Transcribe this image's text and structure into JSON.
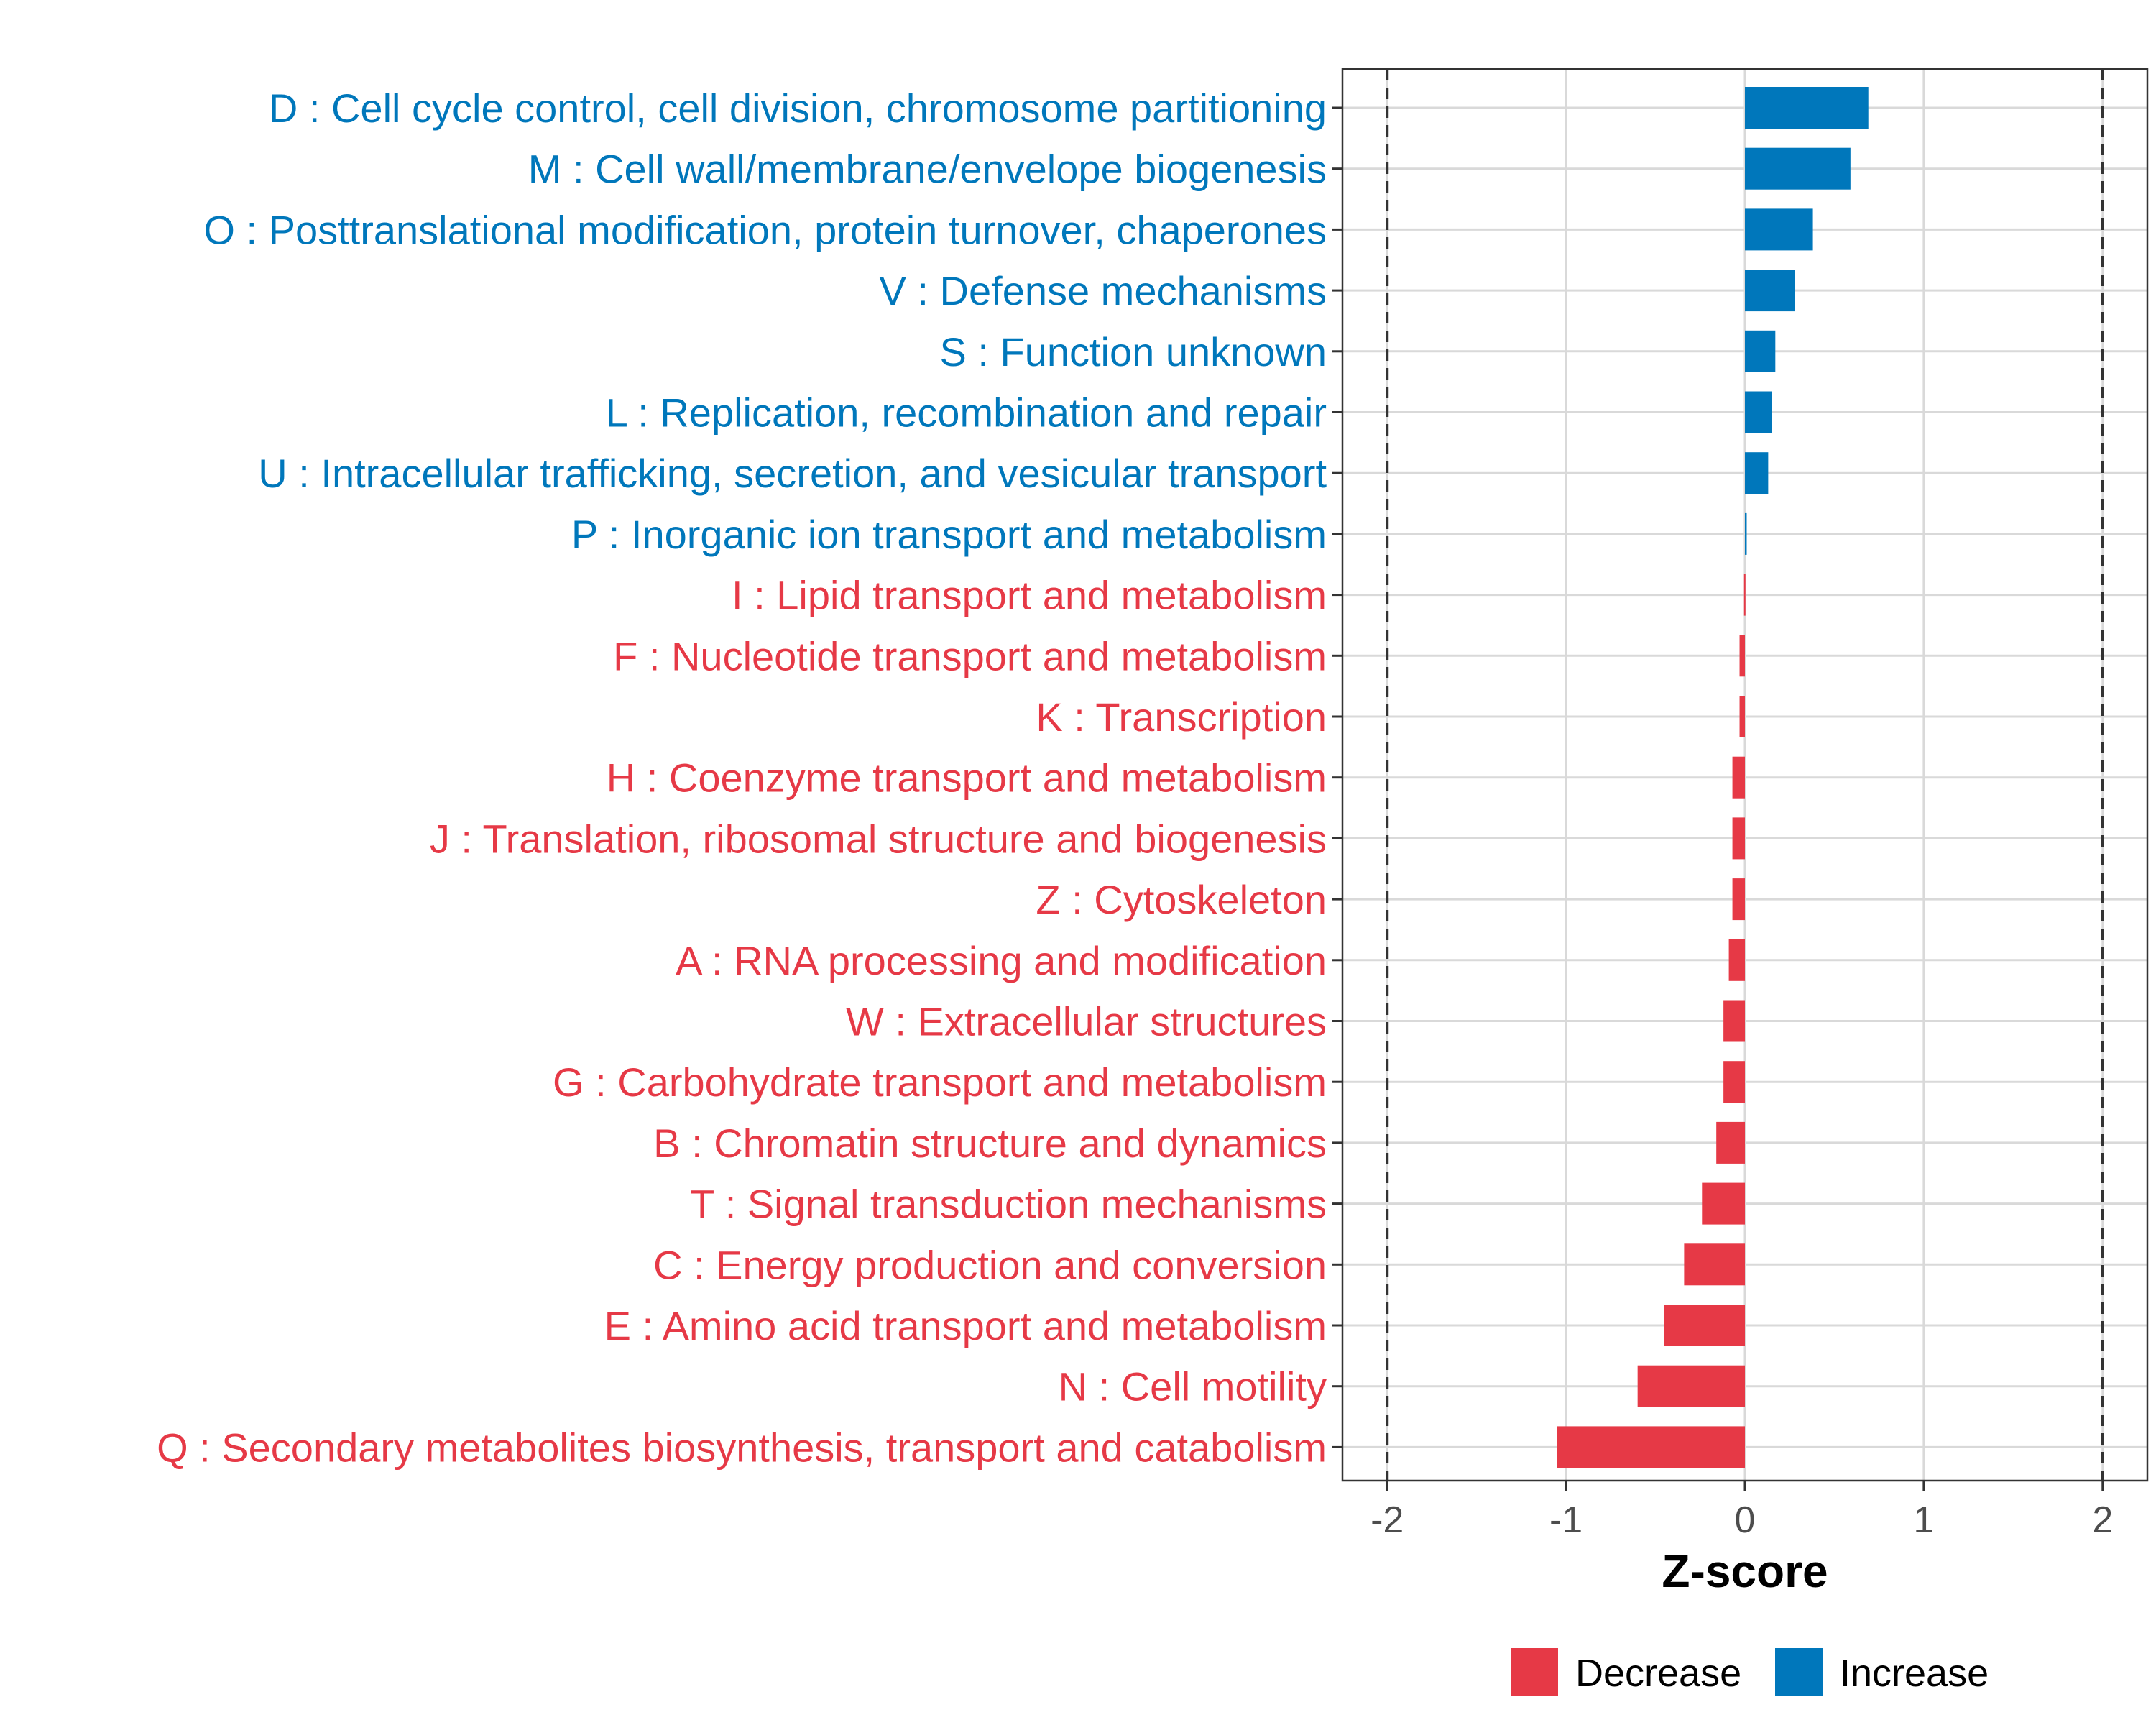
{
  "chart_data": {
    "type": "bar",
    "orientation": "horizontal",
    "xlabel": "Z-score",
    "xlim": [
      -2.25,
      2.25
    ],
    "xticks": [
      -2,
      -1,
      0,
      1,
      2
    ],
    "tick_labels": [
      "-2",
      "-1",
      "0",
      "1",
      "2"
    ],
    "reference_lines": [
      -2,
      2
    ],
    "grid": true,
    "legend_position": "bottom",
    "colors": {
      "Decrease": "#E63946",
      "Increase": "#0077BB"
    },
    "legend": [
      {
        "label": "Decrease",
        "color": "#E63946"
      },
      {
        "label": "Increase",
        "color": "#0077BB"
      }
    ],
    "categories": [
      {
        "label": "D : Cell cycle control, cell division, chromosome partitioning",
        "value": 0.69,
        "group": "Increase"
      },
      {
        "label": "M : Cell wall/membrane/envelope biogenesis",
        "value": 0.59,
        "group": "Increase"
      },
      {
        "label": "O : Posttranslational modification, protein turnover, chaperones",
        "value": 0.38,
        "group": "Increase"
      },
      {
        "label": "V : Defense mechanisms",
        "value": 0.28,
        "group": "Increase"
      },
      {
        "label": "S : Function unknown",
        "value": 0.17,
        "group": "Increase"
      },
      {
        "label": "L : Replication, recombination and repair",
        "value": 0.15,
        "group": "Increase"
      },
      {
        "label": "U : Intracellular trafficking, secretion, and vesicular transport",
        "value": 0.13,
        "group": "Increase"
      },
      {
        "label": "P : Inorganic ion transport and metabolism",
        "value": 0.01,
        "group": "Increase"
      },
      {
        "label": "I : Lipid transport and metabolism",
        "value": -0.005,
        "group": "Decrease"
      },
      {
        "label": "F : Nucleotide transport and metabolism",
        "value": -0.03,
        "group": "Decrease"
      },
      {
        "label": "K : Transcription",
        "value": -0.03,
        "group": "Decrease"
      },
      {
        "label": "H : Coenzyme transport and metabolism",
        "value": -0.07,
        "group": "Decrease"
      },
      {
        "label": "J : Translation, ribosomal structure and biogenesis",
        "value": -0.07,
        "group": "Decrease"
      },
      {
        "label": "Z : Cytoskeleton",
        "value": -0.07,
        "group": "Decrease"
      },
      {
        "label": "A : RNA processing and modification",
        "value": -0.09,
        "group": "Decrease"
      },
      {
        "label": "W : Extracellular structures",
        "value": -0.12,
        "group": "Decrease"
      },
      {
        "label": "G : Carbohydrate transport and metabolism",
        "value": -0.12,
        "group": "Decrease"
      },
      {
        "label": "B : Chromatin structure and dynamics",
        "value": -0.16,
        "group": "Decrease"
      },
      {
        "label": "T : Signal transduction mechanisms",
        "value": -0.24,
        "group": "Decrease"
      },
      {
        "label": "C : Energy production and conversion",
        "value": -0.34,
        "group": "Decrease"
      },
      {
        "label": "E : Amino acid transport and metabolism",
        "value": -0.45,
        "group": "Decrease"
      },
      {
        "label": "N : Cell motility",
        "value": -0.6,
        "group": "Decrease"
      },
      {
        "label": "Q : Secondary metabolites biosynthesis, transport and catabolism",
        "value": -1.05,
        "group": "Decrease"
      }
    ]
  }
}
